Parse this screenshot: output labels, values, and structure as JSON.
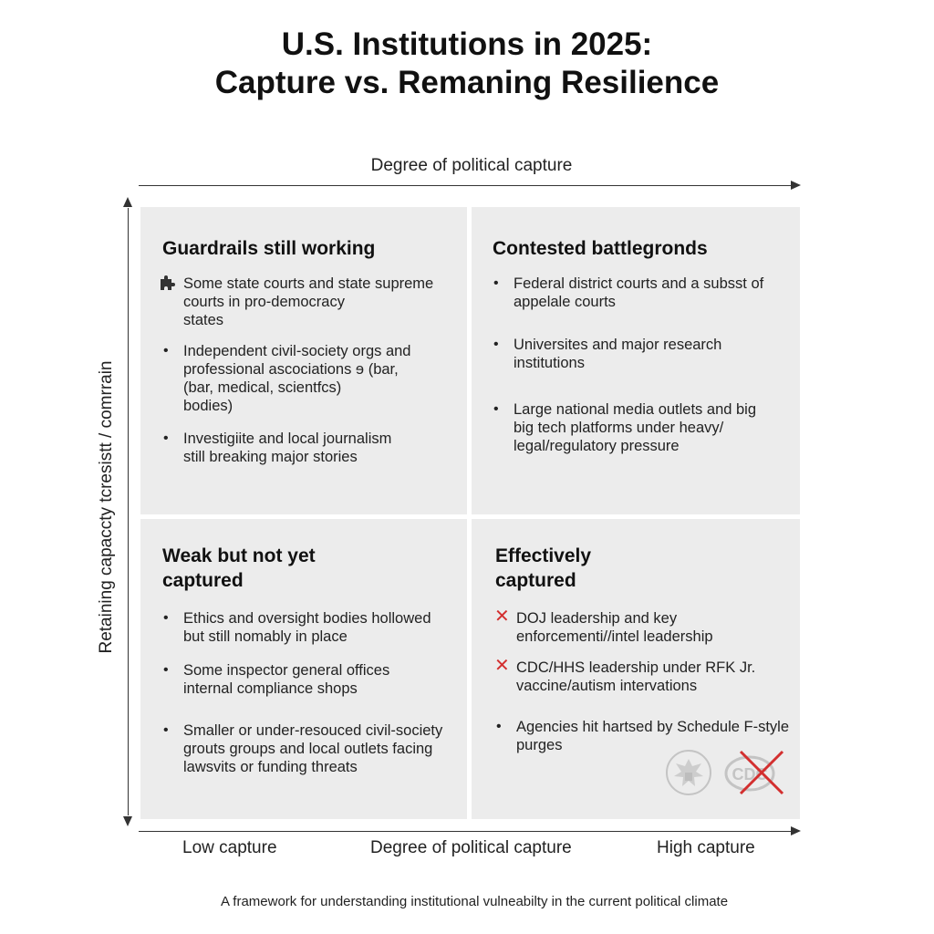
{
  "title": {
    "line1": "U.S. Institutions in 2025:",
    "line2": "Capture vs. Remaning Resilience"
  },
  "axes": {
    "top_label": "Degree of political capture",
    "y_label": "Retaining capaccty tcresistt / comrrain",
    "x_low": "Low capture",
    "x_mid": "Degree of political capture",
    "x_high": "High capture"
  },
  "quadrants": {
    "top_left": {
      "title": "Guardrails still working",
      "items": [
        {
          "marker": "puzzle-icon",
          "lines": [
            "Some state courts and state supreme",
            "courts in pro-democracy",
            "states"
          ]
        },
        {
          "marker": "bullet",
          "lines": [
            "Independent civil-society orgs and",
            "professional ascociations ɘ (bar,",
            "(bar, medical, scientfcs)",
            "bodies)"
          ]
        },
        {
          "marker": "bullet",
          "lines": [
            "Investigiite and local journalism",
            "still breaking major stories"
          ]
        }
      ]
    },
    "top_right": {
      "title": "Contested battlegronds",
      "items": [
        {
          "marker": "bullet",
          "lines": [
            "Federal district courts and a subsst of",
            "appelale courts"
          ]
        },
        {
          "marker": "bullet",
          "lines": [
            "Universites and major research",
            "institutions"
          ]
        },
        {
          "marker": "bullet",
          "lines": [
            "Large national media outlets and big",
            "big tech platforms under heavy/",
            "legal/regulatory pressure"
          ]
        }
      ]
    },
    "bottom_left": {
      "title_line1": "Weak but not yet",
      "title_line2": "captured",
      "items": [
        {
          "marker": "bullet",
          "lines": [
            "Ethics and oversight bodies hollowed",
            "but still nomably in place"
          ]
        },
        {
          "marker": "bullet",
          "lines": [
            "Some inspector general offices",
            "internal compliance shops"
          ]
        },
        {
          "marker": "bullet",
          "lines": [
            "Smaller or under-resouced civil-society",
            "grouts groups and local outlets facing",
            "lawsvits or funding threats"
          ]
        }
      ]
    },
    "bottom_right": {
      "title_line1": "Effectively",
      "title_line2": "captured",
      "items": [
        {
          "marker": "x-mark",
          "lines": [
            "DOJ leadership and key",
            "enforcementi//intel leadership"
          ]
        },
        {
          "marker": "x-mark",
          "lines": [
            "CDC/HHS leadership under RFK Jr.",
            "vaccine/autism intervations"
          ]
        },
        {
          "marker": "bullet",
          "lines": [
            "Agencies hit hartsed by Schedule F-style",
            "purges"
          ]
        }
      ],
      "logo_text": "CDC"
    }
  },
  "markers": {
    "bullet": "•",
    "x_mark": "✕"
  },
  "caption": "A framework for understanding institutional vulneabilty in the current political climate",
  "colors": {
    "quadrant_bg": "#ececec",
    "x_mark": "#d32f2f",
    "axis": "#333333"
  }
}
